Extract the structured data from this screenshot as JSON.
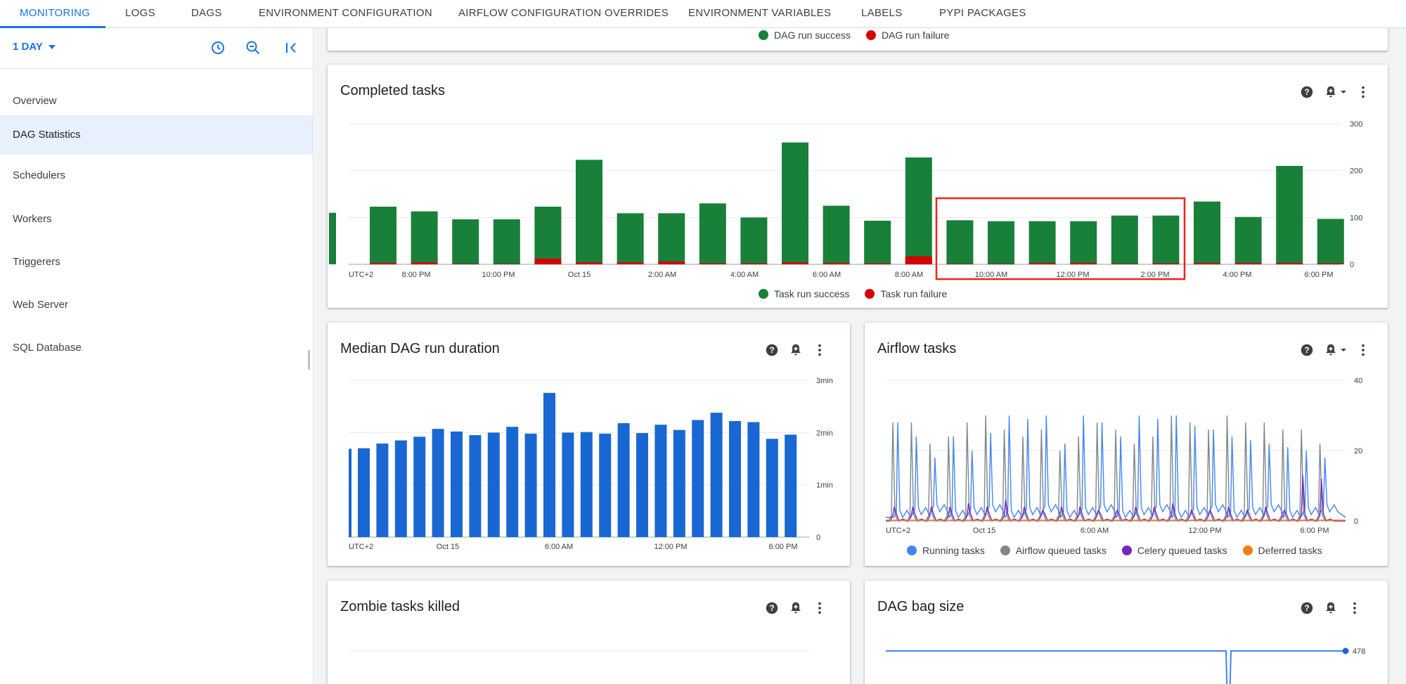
{
  "tabs": [
    {
      "label": "MONITORING",
      "active": true
    },
    {
      "label": "LOGS"
    },
    {
      "label": "DAGS"
    },
    {
      "label": "ENVIRONMENT CONFIGURATION"
    },
    {
      "label": "AIRFLOW CONFIGURATION OVERRIDES"
    },
    {
      "label": "ENVIRONMENT VARIABLES"
    },
    {
      "label": "LABELS"
    },
    {
      "label": "PYPI PACKAGES"
    }
  ],
  "sidebar": {
    "range_label": "1 DAY",
    "items": [
      {
        "label": "Overview"
      },
      {
        "label": "DAG Statistics",
        "selected": true
      },
      {
        "label": "Schedulers"
      },
      {
        "label": "Workers"
      },
      {
        "label": "Triggerers"
      },
      {
        "label": "Web Server"
      },
      {
        "label": "SQL Database"
      }
    ]
  },
  "colors": {
    "accent": "#1a73e8",
    "success": "#188038",
    "failure": "#d50000",
    "blue_bar": "#1967d2",
    "running": "#4285f4",
    "airflow_queued": "#80868b",
    "celery_queued": "#7627bb",
    "deferred": "#fa7b17",
    "highlight": "#e8271b"
  },
  "prev_card": {
    "legend": [
      "DAG run success",
      "DAG run failure"
    ]
  },
  "completed_tasks": {
    "title": "Completed tasks",
    "legend": [
      "Task run success",
      "Task run failure"
    ],
    "chart_data": {
      "type": "bar",
      "stacked": true,
      "timezone_label": "UTC+2",
      "x_tick_labels": [
        "8:00 PM",
        "10:00 PM",
        "Oct 15",
        "2:00 AM",
        "4:00 AM",
        "6:00 AM",
        "8:00 AM",
        "10:00 AM",
        "12:00 PM",
        "2:00 PM",
        "4:00 PM",
        "6:00 PM"
      ],
      "y_ticks": [
        0,
        100,
        200,
        300
      ],
      "ylim": [
        0,
        300
      ],
      "series": [
        {
          "name": "Task run success",
          "values": [
            110,
            123,
            113,
            96,
            96,
            123,
            223,
            109,
            109,
            130,
            100,
            260,
            125,
            93,
            228,
            94,
            92,
            92,
            92,
            104,
            104,
            134,
            101,
            210,
            97
          ]
        },
        {
          "name": "Task run failure",
          "values": [
            0,
            3,
            4,
            1,
            1,
            12,
            4,
            4,
            6,
            2,
            2,
            4,
            3,
            2,
            17,
            1,
            1,
            3,
            3,
            1,
            2,
            3,
            3,
            3,
            2
          ]
        }
      ],
      "highlighted_range": [
        "10:00 AM",
        "2:00 PM"
      ]
    }
  },
  "median_dag": {
    "title": "Median DAG run duration",
    "chart_data": {
      "type": "bar",
      "timezone_label": "UTC+2",
      "x_tick_labels": [
        "Oct 15",
        "6:00 AM",
        "12:00 PM",
        "6:00 PM"
      ],
      "y_tick_labels": [
        "0",
        "1min",
        "2min",
        "3min"
      ],
      "ylim_min": [
        0,
        3
      ],
      "values": [
        1.69,
        1.7,
        1.79,
        1.85,
        1.92,
        2.07,
        2.02,
        1.95,
        2.0,
        2.11,
        1.98,
        2.76,
        2.0,
        2.01,
        1.98,
        2.18,
        1.99,
        2.15,
        2.05,
        2.24,
        2.38,
        2.22,
        2.2,
        1.88,
        1.96
      ]
    }
  },
  "airflow_tasks": {
    "title": "Airflow tasks",
    "legend": [
      "Running tasks",
      "Airflow queued tasks",
      "Celery queued tasks",
      "Deferred tasks"
    ],
    "chart_data": {
      "type": "line",
      "timezone_label": "UTC+2",
      "x_tick_labels": [
        "Oct 15",
        "6:00 AM",
        "12:00 PM",
        "6:00 PM"
      ],
      "y_ticks": [
        0,
        20,
        40
      ],
      "ylim": [
        0,
        40
      ],
      "series": [
        {
          "name": "Running tasks",
          "peaks": [
            28,
            24,
            18,
            24,
            20,
            25,
            30,
            29,
            30,
            22,
            30,
            28,
            24,
            30,
            29,
            30,
            27,
            26,
            24,
            23,
            22,
            21,
            20,
            18
          ],
          "baseline": 1
        },
        {
          "name": "Airflow queued tasks",
          "peaks": [
            28,
            28,
            22,
            24,
            28,
            30,
            26,
            24,
            26,
            20,
            24,
            28,
            26,
            22,
            24,
            30,
            28,
            26,
            30,
            28,
            28,
            26,
            26,
            22
          ],
          "baseline": 0
        },
        {
          "name": "Celery queued tasks",
          "peaks": [
            4,
            4,
            4,
            4,
            5,
            4,
            6,
            4,
            3,
            4,
            4,
            3,
            3,
            4,
            4,
            5,
            3,
            3,
            4,
            3,
            4,
            3,
            13,
            12
          ],
          "baseline": 0
        },
        {
          "name": "Deferred tasks",
          "values": [
            0
          ],
          "baseline": 0
        }
      ]
    }
  },
  "zombie": {
    "title": "Zombie tasks killed"
  },
  "dag_bag": {
    "title": "DAG bag size",
    "chart_data": {
      "type": "line",
      "last_value_label": "478",
      "series": [
        {
          "name": "",
          "value": 478,
          "dip": true
        }
      ]
    }
  }
}
